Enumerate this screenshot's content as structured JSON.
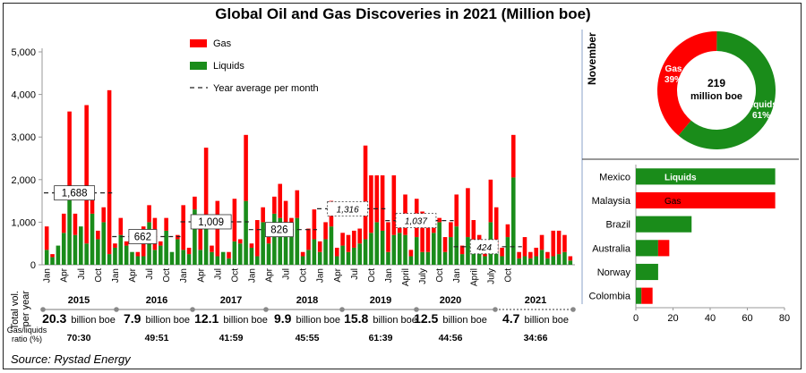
{
  "title": "Global Oil and Gas Discoveries in 2021 (Million boe)",
  "source": "Source: Rystad Energy",
  "colors": {
    "gas": "#ff0000",
    "liquids": "#1a8c1a"
  },
  "chart_data": [
    {
      "type": "bar",
      "stacked": true,
      "ylim": [
        0,
        5000
      ],
      "yticks": [
        "0",
        "1,000",
        "2,000",
        "3,000",
        "4,000",
        "5,000"
      ],
      "grid": false,
      "legend": {
        "placement": "top-center",
        "entries": [
          "Gas",
          "Liquids",
          "Year average per month"
        ]
      },
      "month_labels": [
        "Jan",
        "Apr",
        "Jul",
        "Oct",
        "Jan",
        "Apr",
        "Jul",
        "Oct",
        "Jan",
        "Apr",
        "Jul",
        "Oct",
        "Jan",
        "Apr",
        "Jul",
        "Oct",
        "Jan",
        "Apr",
        "Jul",
        "Oct",
        "Jan",
        "April",
        "July",
        "Oct",
        "Jan",
        "April",
        "July",
        "Oct"
      ],
      "series": [
        {
          "name": "Liquids",
          "values": [
            350,
            180,
            450,
            750,
            1600,
            700,
            900,
            500,
            1200,
            600,
            1000,
            250,
            400,
            700,
            450,
            300,
            200,
            200,
            1000,
            350,
            450,
            800,
            300,
            600,
            350,
            250,
            1300,
            350,
            900,
            300,
            200,
            300,
            150,
            550,
            500,
            1500,
            400,
            200,
            1000,
            500,
            1200,
            1100,
            1000,
            900,
            1100,
            200,
            350,
            600,
            300,
            600,
            900,
            200,
            450,
            300,
            400,
            500,
            600,
            750,
            1000,
            800,
            300,
            700,
            750,
            700,
            200,
            650,
            300,
            300,
            750,
            1000,
            300,
            650,
            900,
            250,
            650,
            350,
            400,
            200,
            1000,
            300,
            200,
            650,
            2050,
            150,
            200,
            150,
            200,
            350,
            150,
            200,
            250,
            300,
            100
          ],
          "color": "#1a8c1a"
        },
        {
          "name": "Gas",
          "values": [
            550,
            70,
            0,
            450,
            2000,
            500,
            0,
            3250,
            550,
            200,
            350,
            3850,
            100,
            400,
            100,
            0,
            100,
            700,
            400,
            750,
            100,
            300,
            0,
            100,
            1050,
            150,
            300,
            550,
            1850,
            150,
            1300,
            0,
            150,
            1000,
            100,
            1550,
            100,
            850,
            350,
            200,
            400,
            800,
            500,
            200,
            650,
            100,
            500,
            700,
            250,
            400,
            600,
            200,
            300,
            400,
            400,
            350,
            2200,
            1350,
            1100,
            1300,
            700,
            1400,
            150,
            950,
            150,
            900,
            950,
            700,
            250,
            100,
            350,
            350,
            750,
            200,
            1150,
            700,
            300,
            300,
            1000,
            1050,
            200,
            300,
            1000,
            150,
            450,
            150,
            200,
            350,
            150,
            600,
            550,
            400,
            100
          ],
          "color": "#ff0000"
        }
      ],
      "year_averages": [
        {
          "year": "2015",
          "value": 1688,
          "label": "1,688"
        },
        {
          "year": "2016",
          "value": 662,
          "label": "662"
        },
        {
          "year": "2017",
          "value": 1009,
          "label": "1,009"
        },
        {
          "year": "2018",
          "value": 826,
          "label": "826"
        },
        {
          "year": "2019",
          "value": 1316,
          "label": "1,316"
        },
        {
          "year": "2020",
          "value": 1037,
          "label": "1,037"
        },
        {
          "year": "2021",
          "value": 424,
          "label": "424"
        }
      ],
      "ylabel_rows": [
        "Total vol.",
        "per year"
      ],
      "ratio_label_rows": [
        "Gas/liquids",
        "ratio (%)"
      ],
      "years": [
        {
          "year": "2015",
          "total_num": "20.3",
          "total_unit": "billion boe",
          "ratio": "70:30"
        },
        {
          "year": "2016",
          "total_num": "7.9",
          "total_unit": "billion boe",
          "ratio": "49:51"
        },
        {
          "year": "2017",
          "total_num": "12.1",
          "total_unit": "billion boe",
          "ratio": "41:59"
        },
        {
          "year": "2018",
          "total_num": "9.9",
          "total_unit": "billion boe",
          "ratio": "45:55"
        },
        {
          "year": "2019",
          "total_num": "15.8",
          "total_unit": "billion boe",
          "ratio": "61:39"
        },
        {
          "year": "2020",
          "total_num": "12.5",
          "total_unit": "billion boe",
          "ratio": "44:56"
        },
        {
          "year": "2021",
          "total_num": "4.7",
          "total_unit": "billion boe",
          "ratio": "34:66"
        }
      ]
    },
    {
      "type": "pie",
      "title": "November",
      "center_value": "219",
      "center_unit": "million boe",
      "slices": [
        {
          "name": "Gas",
          "value": 39,
          "label": "39%",
          "color": "#ff0000"
        },
        {
          "name": "Liquids",
          "value": 61,
          "label": "61%",
          "color": "#1a8c1a"
        }
      ]
    },
    {
      "type": "bar",
      "orientation": "horizontal",
      "stacked": true,
      "categories": [
        "Mexico",
        "Malaysia",
        "Brazil",
        "Australia",
        "Norway",
        "Colombia"
      ],
      "xlim": [
        0,
        80
      ],
      "xticks": [
        "0",
        "20",
        "40",
        "60",
        "80"
      ],
      "bar_labels": [
        "Liquids",
        "Gas"
      ],
      "series": [
        {
          "name": "Liquids",
          "values": [
            75,
            0,
            30,
            12,
            12,
            3
          ],
          "color": "#1a8c1a"
        },
        {
          "name": "Gas",
          "values": [
            0,
            75,
            0,
            6,
            0,
            6
          ],
          "color": "#ff0000"
        }
      ]
    }
  ]
}
